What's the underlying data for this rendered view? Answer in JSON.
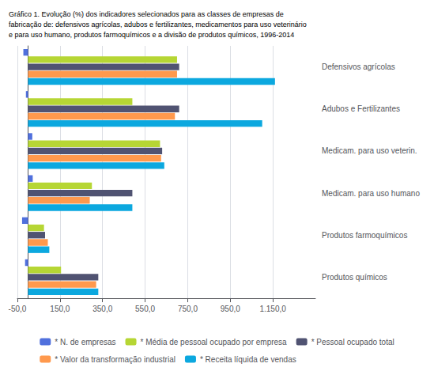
{
  "chart_data": {
    "type": "bar",
    "orientation": "horizontal",
    "title": "Gráfico 1. Evolução (%) dos indicadores selecionados para as classes de empresas de\nfabricação de: defensivos agrícolas, adubos e fertilizantes, medicamentos para uso veterinário\ne para uso humano, produtos farmoquímicos e a divisão de produtos químicos, 1996-2014",
    "categories": [
      "Produtos químicos",
      "Produtos farmoquímicos",
      "Medicam. para uso humano",
      "Medicam. para uso veterin.",
      "Adubos e Fertilizantes",
      "Defensivos agrícolas"
    ],
    "series": [
      {
        "name": "* N. de empresas",
        "values": [
          -14,
          -28,
          22,
          20,
          -10,
          -22
        ]
      },
      {
        "name": "* Média de pessoal ocupado por empresa",
        "values": [
          155,
          75,
          300,
          620,
          490,
          700
        ]
      },
      {
        "name": "* Pessoal ocupado total",
        "values": [
          330,
          80,
          490,
          630,
          710,
          710
        ]
      },
      {
        "name": "* Valor da transformação industrial",
        "values": [
          320,
          93,
          290,
          625,
          690,
          700
        ]
      },
      {
        "name": "* Receita líquida de vendas",
        "values": [
          330,
          100,
          490,
          640,
          1100,
          1160
        ]
      }
    ],
    "xlim": [
      -50,
      1350
    ],
    "xticks": [
      {
        "value": -50,
        "label": "-50,0"
      },
      {
        "value": 150,
        "label": "150,0"
      },
      {
        "value": 350,
        "label": "350,0"
      },
      {
        "value": 550,
        "label": "550,0"
      },
      {
        "value": 750,
        "label": "750,0"
      },
      {
        "value": 950,
        "label": "950,0"
      },
      {
        "value": 1150,
        "label": "1.150,0"
      }
    ],
    "grid": true,
    "legend": "bottom"
  }
}
